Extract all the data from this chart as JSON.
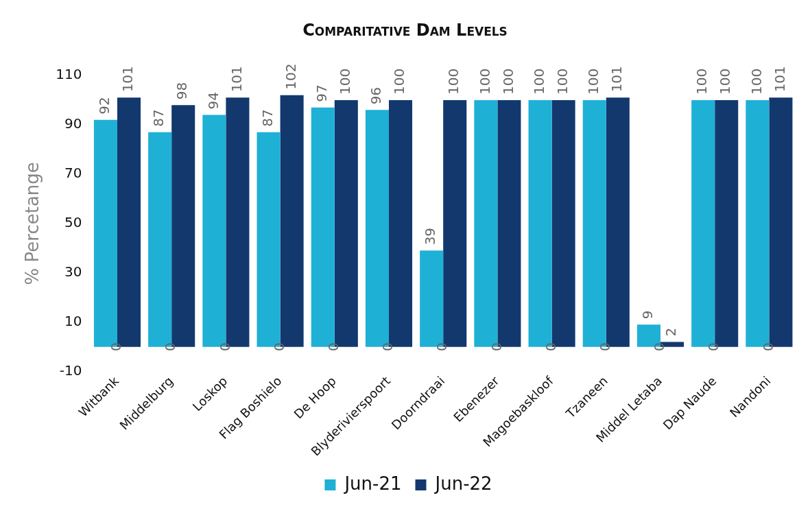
{
  "chart_data": {
    "type": "bar",
    "title": "Comparitative Dam Levels",
    "ylabel": "% Percetange",
    "categories": [
      "Witbank",
      "Middelburg",
      "Loskop",
      "Flag Boshielo",
      "De Hoop",
      "Blyderivierspoort",
      "Doorndraai",
      "Ebenezer",
      "Magoebaskloof",
      "Tzaneen",
      "Middel Letaba",
      "Dap Naude",
      "Nandoni"
    ],
    "series": [
      {
        "name": "Jun-21",
        "color": "#1fb0d6",
        "values": [
          92,
          87,
          94,
          87,
          97,
          96,
          39,
          100,
          100,
          100,
          9,
          100,
          100
        ]
      },
      {
        "name": "Jun-22",
        "color": "#12386e",
        "values": [
          101,
          98,
          101,
          102,
          100,
          100,
          100,
          100,
          100,
          101,
          2,
          100,
          101
        ]
      }
    ],
    "ylim": [
      -10,
      110
    ],
    "yticks": [
      -10,
      10,
      30,
      50,
      70,
      90,
      110
    ],
    "grid": false,
    "legend": "bottom",
    "data_labels": true,
    "annotations": [
      {
        "text": "0",
        "x": "Witbank",
        "y": 0
      },
      {
        "text": "0",
        "x": "Middelburg",
        "y": 0
      },
      {
        "text": "0",
        "x": "Loskop",
        "y": 0
      },
      {
        "text": "0",
        "x": "Flag Boshielo",
        "y": 0
      },
      {
        "text": "0",
        "x": "De Hoop",
        "y": 0
      },
      {
        "text": "0",
        "x": "Blyderivierspoort",
        "y": 0
      },
      {
        "text": "0",
        "x": "Doorndraai",
        "y": 0
      },
      {
        "text": "0",
        "x": "Ebenezer",
        "y": 0
      },
      {
        "text": "0",
        "x": "Magoebaskloof",
        "y": 0
      },
      {
        "text": "0",
        "x": "Tzaneen",
        "y": 0
      },
      {
        "text": "0",
        "x": "Middel Letaba",
        "y": 0
      },
      {
        "text": "0",
        "x": "Dap Naude",
        "y": 0
      },
      {
        "text": "0",
        "x": "Nandoni",
        "y": 0
      }
    ]
  }
}
